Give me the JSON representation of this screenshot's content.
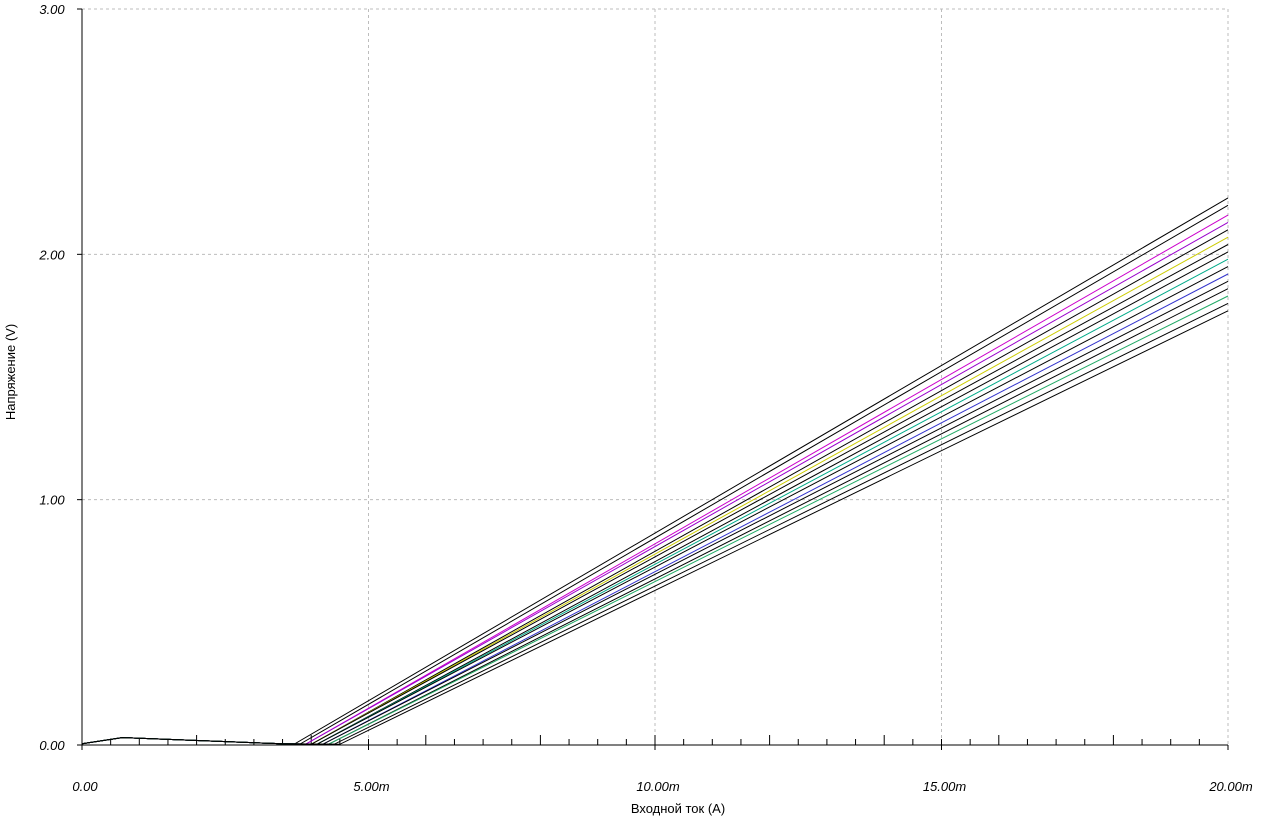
{
  "chart_data": {
    "type": "line",
    "xlabel": "Входной ток (A)",
    "ylabel": "Напряжение (V)",
    "xlim": [
      0,
      0.02
    ],
    "ylim": [
      0,
      3
    ],
    "grid": true,
    "x_ticks": [
      {
        "value": 0,
        "label": "0.00"
      },
      {
        "value": 0.005,
        "label": "5.00m"
      },
      {
        "value": 0.01,
        "label": "10.00m"
      },
      {
        "value": 0.015,
        "label": "15.00m"
      },
      {
        "value": 0.02,
        "label": "20.00m"
      }
    ],
    "y_ticks": [
      {
        "value": 0,
        "label": "0.00"
      },
      {
        "value": 1,
        "label": "1.00"
      },
      {
        "value": 2,
        "label": "2.00"
      },
      {
        "value": 3,
        "label": "3.00"
      }
    ],
    "series": [
      {
        "color": "#000000",
        "points": [
          [
            0,
            0.005
          ],
          [
            0.0007,
            0.03
          ],
          [
            0.0035,
            0.005
          ],
          [
            0.0037,
            0.003
          ],
          [
            0.02,
            2.23
          ]
        ]
      },
      {
        "color": "#000000",
        "points": [
          [
            0,
            0.005
          ],
          [
            0.0007,
            0.03
          ],
          [
            0.0035,
            0.005
          ],
          [
            0.0038,
            0.003
          ],
          [
            0.02,
            2.2
          ]
        ]
      },
      {
        "color": "#cc00cc",
        "points": [
          [
            0,
            0.005
          ],
          [
            0.0007,
            0.03
          ],
          [
            0.0035,
            0.005
          ],
          [
            0.0039,
            0.003
          ],
          [
            0.02,
            2.16
          ]
        ]
      },
      {
        "color": "#9900cc",
        "points": [
          [
            0,
            0.005
          ],
          [
            0.0007,
            0.03
          ],
          [
            0.0035,
            0.005
          ],
          [
            0.0039,
            0.003
          ],
          [
            0.02,
            2.13
          ]
        ]
      },
      {
        "color": "#000000",
        "points": [
          [
            0,
            0.005
          ],
          [
            0.0007,
            0.03
          ],
          [
            0.0035,
            0.005
          ],
          [
            0.004,
            0.003
          ],
          [
            0.02,
            2.1
          ]
        ]
      },
      {
        "color": "#cccc00",
        "points": [
          [
            0,
            0.005
          ],
          [
            0.0007,
            0.03
          ],
          [
            0.0035,
            0.005
          ],
          [
            0.004,
            0.003
          ],
          [
            0.02,
            2.07
          ]
        ]
      },
      {
        "color": "#000000",
        "points": [
          [
            0,
            0.005
          ],
          [
            0.0007,
            0.03
          ],
          [
            0.0035,
            0.005
          ],
          [
            0.004,
            0.003
          ],
          [
            0.02,
            2.04
          ]
        ]
      },
      {
        "color": "#000000",
        "points": [
          [
            0,
            0.005
          ],
          [
            0.0007,
            0.03
          ],
          [
            0.0035,
            0.005
          ],
          [
            0.0041,
            0.003
          ],
          [
            0.02,
            2.01
          ]
        ]
      },
      {
        "color": "#00aa88",
        "points": [
          [
            0,
            0.005
          ],
          [
            0.0007,
            0.03
          ],
          [
            0.0035,
            0.005
          ],
          [
            0.0041,
            0.003
          ],
          [
            0.02,
            1.98
          ]
        ]
      },
      {
        "color": "#000000",
        "points": [
          [
            0,
            0.005
          ],
          [
            0.0007,
            0.03
          ],
          [
            0.0035,
            0.005
          ],
          [
            0.0041,
            0.003
          ],
          [
            0.02,
            1.95
          ]
        ]
      },
      {
        "color": "#3333cc",
        "points": [
          [
            0,
            0.005
          ],
          [
            0.0007,
            0.03
          ],
          [
            0.0035,
            0.005
          ],
          [
            0.0042,
            0.003
          ],
          [
            0.02,
            1.92
          ]
        ]
      },
      {
        "color": "#000000",
        "points": [
          [
            0,
            0.005
          ],
          [
            0.0007,
            0.03
          ],
          [
            0.0035,
            0.005
          ],
          [
            0.0042,
            0.003
          ],
          [
            0.02,
            1.89
          ]
        ]
      },
      {
        "color": "#000000",
        "points": [
          [
            0,
            0.005
          ],
          [
            0.0007,
            0.03
          ],
          [
            0.0035,
            0.005
          ],
          [
            0.0043,
            0.003
          ],
          [
            0.02,
            1.86
          ]
        ]
      },
      {
        "color": "#22aa66",
        "points": [
          [
            0,
            0.005
          ],
          [
            0.0007,
            0.03
          ],
          [
            0.0035,
            0.005
          ],
          [
            0.0043,
            0.003
          ],
          [
            0.02,
            1.83
          ]
        ]
      },
      {
        "color": "#000000",
        "points": [
          [
            0,
            0.005
          ],
          [
            0.0007,
            0.03
          ],
          [
            0.0035,
            0.005
          ],
          [
            0.0044,
            0.003
          ],
          [
            0.02,
            1.8
          ]
        ]
      },
      {
        "color": "#000000",
        "points": [
          [
            0,
            0.005
          ],
          [
            0.0007,
            0.03
          ],
          [
            0.0035,
            0.005
          ],
          [
            0.0045,
            0.003
          ],
          [
            0.02,
            1.77
          ]
        ]
      }
    ]
  }
}
